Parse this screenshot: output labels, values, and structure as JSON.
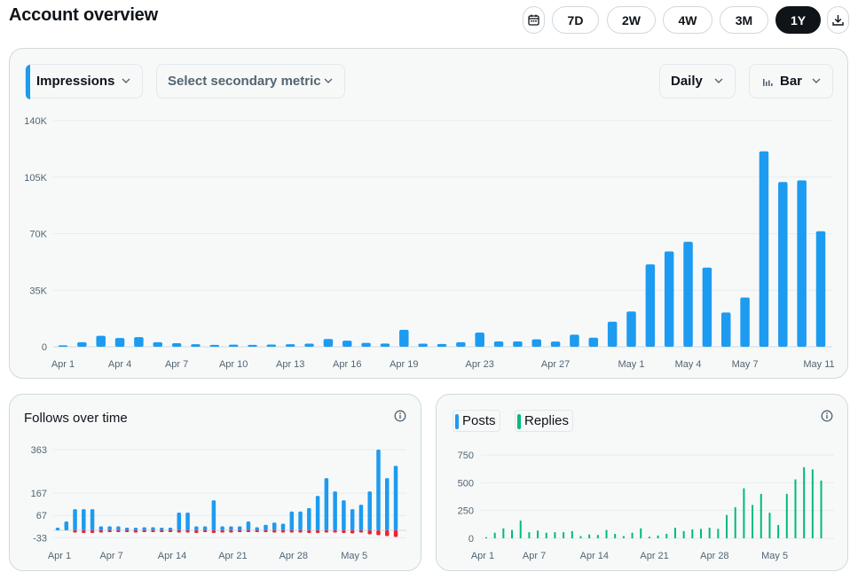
{
  "header": {
    "title": "Account overview",
    "ranges": [
      "7D",
      "2W",
      "4W",
      "3M",
      "1Y"
    ],
    "active_range": "1Y"
  },
  "main_chart": {
    "primary_metric": "Impressions",
    "secondary_metric_placeholder": "Select secondary metric",
    "granularity": "Daily",
    "chart_type_label": "Bar",
    "accent": "#1d9bf0"
  },
  "follows_panel": {
    "title": "Follows over time",
    "follow_color": "#1d9bf0",
    "unfollow_color": "#f4212e"
  },
  "posts_panel": {
    "legend": [
      {
        "name": "Posts",
        "color": "#1d9bf0"
      },
      {
        "name": "Replies",
        "color": "#00ba7c"
      }
    ]
  },
  "chart_data": [
    {
      "type": "bar",
      "ylim": [
        0,
        140000
      ],
      "yticks": [
        "0",
        "35K",
        "70K",
        "105K",
        "140K"
      ],
      "ytick_values": [
        0,
        35000,
        70000,
        105000,
        140000
      ],
      "xtick_labels": [
        {
          "label": "Apr 1",
          "index": 0
        },
        {
          "label": "Apr 4",
          "index": 3
        },
        {
          "label": "Apr 7",
          "index": 6
        },
        {
          "label": "Apr 10",
          "index": 9
        },
        {
          "label": "Apr 13",
          "index": 12
        },
        {
          "label": "Apr 16",
          "index": 15
        },
        {
          "label": "Apr 19",
          "index": 18
        },
        {
          "label": "Apr 23",
          "index": 22
        },
        {
          "label": "Apr 27",
          "index": 26
        },
        {
          "label": "May 1",
          "index": 30
        },
        {
          "label": "May 4",
          "index": 33
        },
        {
          "label": "May 7",
          "index": 36
        },
        {
          "label": "May 11",
          "index": 40
        }
      ],
      "series": [
        {
          "name": "Impressions",
          "values": [
            900,
            2800,
            6800,
            5400,
            6000,
            2800,
            2200,
            1600,
            1200,
            1300,
            1200,
            1400,
            1600,
            1900,
            4800,
            3800,
            2400,
            2000,
            10500,
            1900,
            1700,
            2800,
            8800,
            3300,
            3300,
            4600,
            3200,
            7500,
            5600,
            15500,
            21800,
            51000,
            59000,
            65000,
            49000,
            21200,
            30500,
            121000,
            102000,
            103000,
            71500
          ]
        }
      ]
    },
    {
      "type": "bar",
      "ylim": [
        -33,
        363
      ],
      "yticks": [
        "-33",
        "67",
        "167",
        "363"
      ],
      "ytick_values": [
        -33,
        67,
        167,
        363
      ],
      "xtick_labels": [
        {
          "label": "Apr 1",
          "index": 0
        },
        {
          "label": "Apr 7",
          "index": 6
        },
        {
          "label": "Apr 14",
          "index": 13
        },
        {
          "label": "Apr 21",
          "index": 20
        },
        {
          "label": "Apr 28",
          "index": 27
        },
        {
          "label": "May 5",
          "index": 34
        }
      ],
      "series": [
        {
          "name": "Follows",
          "values": [
            12,
            40,
            95,
            95,
            95,
            18,
            18,
            18,
            12,
            12,
            14,
            14,
            12,
            12,
            80,
            80,
            18,
            18,
            135,
            18,
            18,
            18,
            40,
            14,
            25,
            35,
            30,
            85,
            85,
            100,
            155,
            235,
            175,
            135,
            95,
            115,
            175,
            363,
            235,
            290
          ]
        },
        {
          "name": "Unfollows",
          "values": [
            0,
            0,
            -10,
            -12,
            -12,
            -10,
            -8,
            -8,
            -8,
            -10,
            -8,
            -8,
            -8,
            -8,
            -10,
            -10,
            -12,
            -8,
            -12,
            -10,
            -10,
            -8,
            -8,
            -8,
            -8,
            -10,
            -10,
            -10,
            -10,
            -12,
            -12,
            -10,
            -10,
            -12,
            -14,
            -10,
            -18,
            -22,
            -26,
            -30
          ]
        }
      ]
    },
    {
      "type": "bar",
      "ylim": [
        0,
        750
      ],
      "yticks": [
        "0",
        "250",
        "500",
        "750"
      ],
      "ytick_values": [
        0,
        250,
        500,
        750
      ],
      "xtick_labels": [
        {
          "label": "Apr 1",
          "index": 0
        },
        {
          "label": "Apr 7",
          "index": 6
        },
        {
          "label": "Apr 14",
          "index": 13
        },
        {
          "label": "Apr 21",
          "index": 20
        },
        {
          "label": "Apr 28",
          "index": 27
        },
        {
          "label": "May 5",
          "index": 34
        }
      ],
      "series": [
        {
          "name": "Posts",
          "values": [
            0,
            0,
            0,
            0,
            0,
            0,
            0,
            0,
            0,
            0,
            0,
            0,
            0,
            0,
            0,
            0,
            0,
            0,
            0,
            0,
            0,
            0,
            0,
            0,
            0,
            0,
            0,
            0,
            0,
            0,
            0,
            0,
            0,
            0,
            0,
            0,
            0,
            0,
            0,
            0
          ]
        },
        {
          "name": "Replies",
          "values": [
            10,
            50,
            90,
            75,
            160,
            55,
            70,
            50,
            55,
            55,
            65,
            20,
            35,
            30,
            75,
            40,
            20,
            50,
            90,
            15,
            25,
            40,
            95,
            65,
            80,
            85,
            95,
            85,
            210,
            280,
            450,
            300,
            400,
            230,
            120,
            400,
            530,
            640,
            620,
            520
          ]
        }
      ]
    }
  ]
}
